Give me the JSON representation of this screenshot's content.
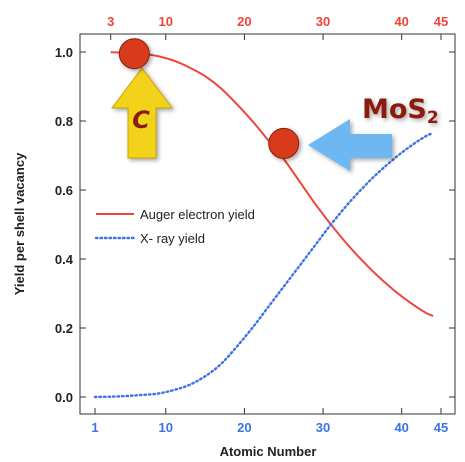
{
  "chart_data": {
    "type": "line",
    "xlabel": "Atomic Number",
    "ylabel": "Yield per shell vacancy",
    "xlim": [
      1,
      45
    ],
    "ylim": [
      0.0,
      1.0
    ],
    "x_ticks": [
      1,
      10,
      20,
      30,
      40,
      45
    ],
    "x_ticks_top": [
      3,
      10,
      20,
      30,
      40,
      45
    ],
    "y_ticks": [
      0.0,
      0.2,
      0.4,
      0.6,
      0.8,
      1.0
    ],
    "y_tick_labels": [
      "0.0",
      "0.2",
      "0.4",
      "0.6",
      "0.8",
      "1.0"
    ],
    "legend_position": "center-left",
    "grid": false,
    "series": [
      {
        "name": "Auger electron yield",
        "color": "#f0443a",
        "style": "solid",
        "x": [
          3,
          5,
          7,
          9,
          11,
          13,
          15,
          17,
          19,
          21,
          23,
          25,
          27,
          29,
          31,
          33,
          35,
          37,
          39,
          41,
          43,
          44
        ],
        "y": [
          0.999,
          0.998,
          0.995,
          0.988,
          0.975,
          0.955,
          0.93,
          0.895,
          0.85,
          0.8,
          0.745,
          0.69,
          0.625,
          0.56,
          0.5,
          0.445,
          0.395,
          0.35,
          0.31,
          0.275,
          0.245,
          0.235
        ]
      },
      {
        "name": "X- ray yield",
        "color": "#3b73e8",
        "style": "dotted",
        "x": [
          1,
          3,
          5,
          7,
          9,
          11,
          13,
          15,
          17,
          19,
          21,
          23,
          25,
          27,
          29,
          31,
          33,
          35,
          37,
          39,
          41,
          43,
          44
        ],
        "y": [
          0.0,
          0.001,
          0.003,
          0.006,
          0.01,
          0.02,
          0.035,
          0.06,
          0.095,
          0.145,
          0.2,
          0.26,
          0.32,
          0.38,
          0.44,
          0.5,
          0.555,
          0.605,
          0.65,
          0.69,
          0.725,
          0.755,
          0.765
        ]
      }
    ],
    "markers": [
      {
        "label": "C",
        "x": 6,
        "y": 0.995,
        "color": "#d83a1a"
      },
      {
        "label": "MoS",
        "subscript": "2",
        "x": 25,
        "y": 0.735,
        "color": "#d83a1a"
      }
    ],
    "colors": {
      "bottom_ticks": "#3b73e8",
      "top_ticks": "#f0443a",
      "arrow_c": "#f3d21c",
      "arrow_mos2": "#6db8f2"
    }
  }
}
